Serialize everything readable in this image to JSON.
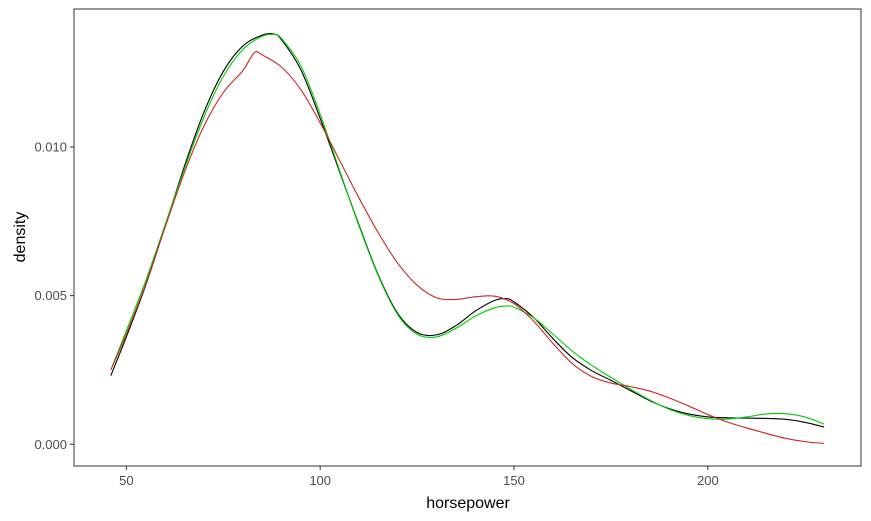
{
  "chart_data": {
    "type": "line",
    "title": "",
    "xlabel": "horsepower",
    "ylabel": "density",
    "xlim": [
      36.5,
      239.5
    ],
    "ylim": [
      -0.00073,
      0.01464
    ],
    "x_ticks": [
      50,
      100,
      150,
      200
    ],
    "x_tick_labels": [
      "50",
      "100",
      "150",
      "200"
    ],
    "y_ticks": [
      0.0,
      0.005,
      0.01
    ],
    "y_tick_labels": [
      "0.000",
      "0.005",
      "0.010"
    ],
    "grid": false,
    "legend": "none",
    "series": [
      {
        "color": "#000000",
        "x": [
          46,
          50,
          55,
          60,
          65,
          70,
          75,
          80,
          85,
          88,
          90,
          95,
          100,
          105,
          110,
          115,
          120,
          125,
          130,
          135,
          140,
          145,
          148,
          150,
          155,
          160,
          165,
          170,
          175,
          180,
          185,
          190,
          195,
          200,
          205,
          210,
          215,
          220,
          225,
          230
        ],
        "y": [
          0.00231,
          0.00361,
          0.00535,
          0.00733,
          0.00936,
          0.01116,
          0.01254,
          0.01339,
          0.01376,
          0.0138,
          0.01361,
          0.0126,
          0.01096,
          0.00917,
          0.00738,
          0.00569,
          0.0044,
          0.00376,
          0.00368,
          0.00399,
          0.00448,
          0.00484,
          0.0049,
          0.00479,
          0.00427,
          0.00356,
          0.00292,
          0.00248,
          0.00215,
          0.00181,
          0.00147,
          0.0012,
          0.00102,
          0.00092,
          0.00089,
          0.00088,
          0.00087,
          0.00084,
          0.00074,
          0.00058
        ]
      },
      {
        "color": "#00cd00",
        "x": [
          46,
          50,
          55,
          60,
          65,
          70,
          75,
          80,
          85,
          88,
          90,
          95,
          100,
          105,
          110,
          115,
          120,
          125,
          130,
          135,
          140,
          145,
          148,
          150,
          155,
          160,
          165,
          170,
          175,
          180,
          185,
          190,
          195,
          200,
          205,
          210,
          215,
          220,
          225,
          230
        ],
        "y": [
          0.0025,
          0.00382,
          0.0055,
          0.00738,
          0.00927,
          0.011,
          0.01237,
          0.01327,
          0.01372,
          0.01378,
          0.01365,
          0.01273,
          0.0111,
          0.00922,
          0.00735,
          0.00566,
          0.00436,
          0.0037,
          0.00361,
          0.0039,
          0.00431,
          0.00459,
          0.00465,
          0.00461,
          0.00426,
          0.00371,
          0.00314,
          0.00266,
          0.00225,
          0.00186,
          0.00149,
          0.00118,
          0.00097,
          0.00086,
          0.00085,
          0.00092,
          0.00102,
          0.00103,
          0.00092,
          0.00068
        ]
      },
      {
        "color": "#cd2626",
        "x": [
          46,
          50,
          55,
          60,
          65,
          70,
          75,
          80,
          83,
          85,
          90,
          95,
          100,
          105,
          110,
          115,
          120,
          125,
          130,
          135,
          140,
          145,
          150,
          155,
          160,
          165,
          170,
          175,
          180,
          185,
          190,
          195,
          200,
          205,
          210,
          215,
          220,
          225,
          230
        ],
        "y": [
          0.0025,
          0.00371,
          0.00539,
          0.0073,
          0.00915,
          0.0107,
          0.01183,
          0.01256,
          0.01317,
          0.0131,
          0.01269,
          0.01193,
          0.01081,
          0.00955,
          0.00829,
          0.00711,
          0.00609,
          0.00535,
          0.00493,
          0.00487,
          0.00496,
          0.00498,
          0.00473,
          0.00415,
          0.0034,
          0.00272,
          0.00228,
          0.00206,
          0.00194,
          0.00179,
          0.00156,
          0.00129,
          0.001,
          0.00075,
          0.00055,
          0.00037,
          0.0002,
          9e-05,
          3e-05
        ]
      }
    ]
  }
}
